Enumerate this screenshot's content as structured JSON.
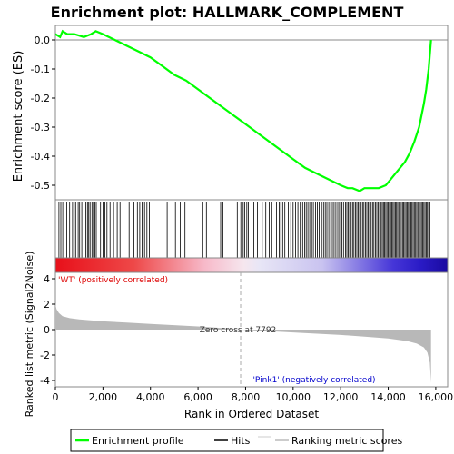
{
  "chart_data": {
    "type": "line",
    "title": "Enrichment plot: HALLMARK_COMPLEMENT",
    "es_panel": {
      "ylabel": "Enrichment score (ES)",
      "ylim": [
        -0.55,
        0.05
      ],
      "yticks": [
        "0.0",
        "-0.1",
        "-0.2",
        "-0.3",
        "-0.4",
        "-0.5"
      ],
      "ytick_values": [
        0.0,
        -0.1,
        -0.2,
        -0.3,
        -0.4,
        -0.5
      ],
      "series": [
        {
          "name": "Enrichment profile",
          "color": "#00ff00",
          "x": [
            0,
            200,
            300,
            500,
            800,
            1200,
            1500,
            1700,
            2000,
            2500,
            3000,
            3500,
            4000,
            4500,
            5000,
            5500,
            6000,
            6500,
            7000,
            7500,
            8000,
            8500,
            9000,
            9500,
            10000,
            10500,
            11000,
            11500,
            12000,
            12300,
            12500,
            12800,
            13000,
            13300,
            13600,
            13900,
            14100,
            14300,
            14500,
            14700,
            14900,
            15100,
            15300,
            15500,
            15600,
            15700,
            15750,
            15800
          ],
          "y": [
            0.02,
            0.01,
            0.03,
            0.02,
            0.02,
            0.01,
            0.02,
            0.03,
            0.02,
            0.0,
            -0.02,
            -0.04,
            -0.06,
            -0.09,
            -0.12,
            -0.14,
            -0.17,
            -0.2,
            -0.23,
            -0.26,
            -0.29,
            -0.32,
            -0.35,
            -0.38,
            -0.41,
            -0.44,
            -0.46,
            -0.48,
            -0.5,
            -0.51,
            -0.51,
            -0.52,
            -0.51,
            -0.51,
            -0.51,
            -0.5,
            -0.48,
            -0.46,
            -0.44,
            -0.42,
            -0.39,
            -0.35,
            -0.3,
            -0.22,
            -0.17,
            -0.1,
            -0.05,
            0.0
          ]
        }
      ]
    },
    "hits_panel": {
      "legend_name": "Hits",
      "hit_ranks": [
        150,
        230,
        310,
        480,
        600,
        720,
        790,
        850,
        960,
        1020,
        1110,
        1200,
        1280,
        1350,
        1400,
        1460,
        1540,
        1600,
        1660,
        1720,
        1900,
        2000,
        2080,
        2170,
        2300,
        2450,
        2600,
        2720,
        3100,
        3300,
        3450,
        3550,
        3650,
        3750,
        3850,
        3950,
        4700,
        5050,
        5250,
        5450,
        6200,
        6350,
        6950,
        7050,
        7650,
        7800,
        7900,
        7960,
        8050,
        8120,
        8350,
        8500,
        8700,
        8850,
        9000,
        9100,
        9300,
        9420,
        9480,
        9560,
        9650,
        9800,
        9900,
        10000,
        10100,
        10200,
        10300,
        10400,
        10480,
        10550,
        10620,
        10700,
        10780,
        10850,
        10940,
        11020,
        11100,
        11200,
        11280,
        11350,
        11420,
        11500,
        11580,
        11650,
        11720,
        11800,
        11880,
        11950,
        12050,
        12120,
        12200,
        12260,
        12320,
        12380,
        12440,
        12500,
        12560,
        12620,
        12680,
        12740,
        12800,
        12860,
        12920,
        12980,
        13040,
        13100,
        13160,
        13220,
        13280,
        13340,
        13400,
        13460,
        13520,
        13580,
        13640,
        13700,
        13750,
        13800,
        13850,
        13900,
        13950,
        14000,
        14050,
        14100,
        14150,
        14200,
        14250,
        14300,
        14350,
        14400,
        14450,
        14500,
        14550,
        14600,
        14650,
        14700,
        14750,
        14800,
        14850,
        14900,
        14950,
        15000,
        15050,
        15100,
        15150,
        15200,
        15250,
        15300,
        15350,
        15400,
        15450,
        15500,
        15550,
        15600,
        15650,
        15700,
        15750
      ]
    },
    "metric_panel": {
      "ylabel": "Ranked list metric (Signal2Noise)",
      "ylim": [
        -4.5,
        4.5
      ],
      "yticks": [
        "4",
        "2",
        "0",
        "-2",
        "-4"
      ],
      "ytick_values": [
        4,
        2,
        0,
        -2,
        -4
      ],
      "xlabel": "Rank in Ordered Dataset",
      "xlim": [
        0,
        16500
      ],
      "xticks": [
        "0",
        "2,000",
        "4,000",
        "6,000",
        "8,000",
        "10,000",
        "12,000",
        "14,000",
        "16,000"
      ],
      "xtick_values": [
        0,
        2000,
        4000,
        6000,
        8000,
        10000,
        12000,
        14000,
        16000
      ],
      "metric_series": {
        "name": "Ranking metric scores",
        "x": [
          0,
          50,
          150,
          300,
          600,
          1000,
          2000,
          3000,
          4000,
          5000,
          6000,
          7000,
          7792,
          9000,
          10000,
          11000,
          12000,
          13000,
          14000,
          14800,
          15200,
          15500,
          15650,
          15750,
          15800
        ],
        "y": [
          2.0,
          1.6,
          1.3,
          1.05,
          0.9,
          0.8,
          0.65,
          0.55,
          0.45,
          0.35,
          0.25,
          0.12,
          0.0,
          -0.12,
          -0.22,
          -0.32,
          -0.42,
          -0.55,
          -0.7,
          -0.9,
          -1.1,
          -1.4,
          -1.8,
          -2.6,
          -4.2
        ]
      },
      "zero_cross_label": "Zero cross at 7792",
      "zero_cross_rank": 7792,
      "pos_label": "'WT' (positively correlated)",
      "neg_label": "'Pink1' (negatively correlated)",
      "pos_color": "#dd0000",
      "neg_color": "#0000cc"
    },
    "legend": {
      "entries": [
        "Enrichment profile",
        "Hits",
        "Ranking metric scores"
      ]
    }
  }
}
